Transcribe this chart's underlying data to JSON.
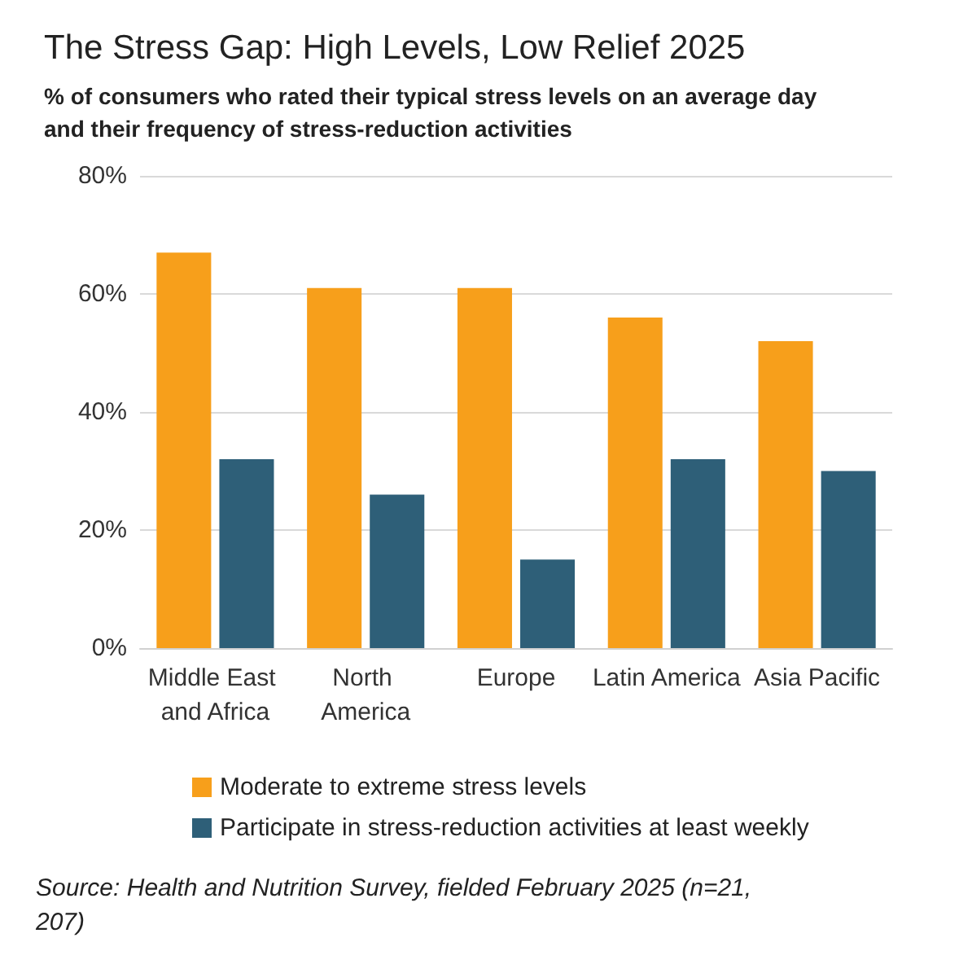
{
  "chart_data": {
    "type": "bar",
    "title": "The Stress Gap: High Levels, Low Relief 2025",
    "subtitle": "% of consumers who rated their typical stress levels on an average day and their frequency of stress-reduction activities",
    "categories": [
      "Middle East and Africa",
      "North America",
      "Europe",
      "Latin America",
      "Asia Pacific"
    ],
    "series": [
      {
        "name": "Moderate to extreme stress levels",
        "color": "#f79f1b",
        "values": [
          67,
          61,
          61,
          56,
          52
        ]
      },
      {
        "name": "Participate in stress-reduction activities at least weekly",
        "color": "#2e5f78",
        "values": [
          32,
          26,
          15,
          32,
          30
        ]
      }
    ],
    "ylim": [
      0,
      80
    ],
    "yticks": [
      {
        "value": 0,
        "label": "0%"
      },
      {
        "value": 20,
        "label": "20%"
      },
      {
        "value": 40,
        "label": "40%"
      },
      {
        "value": 60,
        "label": "60%"
      },
      {
        "value": 80,
        "label": "80%"
      }
    ],
    "grid": "y",
    "legend": "bottom",
    "annotations": [
      "Source: Health and Nutrition Survey, fielded February 2025 (n=21,207)"
    ]
  }
}
